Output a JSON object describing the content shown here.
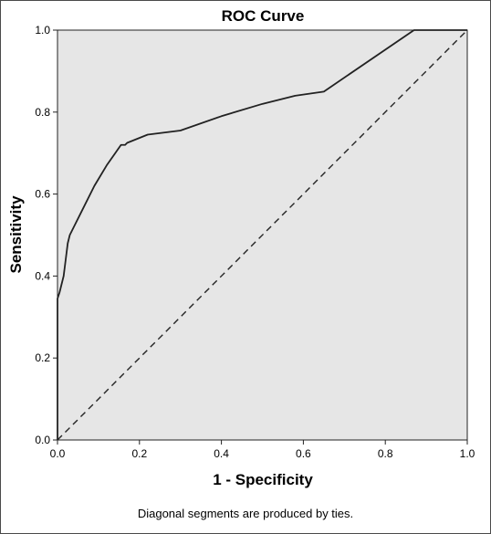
{
  "chart_data": {
    "type": "line",
    "title": "ROC Curve",
    "xlabel": "1 - Specificity",
    "ylabel": "Sensitivity",
    "xlim": [
      0,
      1
    ],
    "ylim": [
      0,
      1
    ],
    "x_ticks": [
      "0.0",
      "0.2",
      "0.4",
      "0.6",
      "0.8",
      "1.0"
    ],
    "y_ticks": [
      "0.0",
      "0.2",
      "0.4",
      "0.6",
      "0.8",
      "1.0"
    ],
    "grid": false,
    "plot_background": "#e6e6e6",
    "series": [
      {
        "style": "solid",
        "color": "#222222",
        "x": [
          0.0,
          0.0,
          0.0,
          0.005,
          0.01,
          0.015,
          0.02,
          0.025,
          0.03,
          0.04,
          0.06,
          0.09,
          0.12,
          0.155,
          0.165,
          0.17,
          0.22,
          0.3,
          0.4,
          0.5,
          0.58,
          0.65,
          0.87,
          1.0
        ],
        "y": [
          0.0,
          0.08,
          0.345,
          0.36,
          0.38,
          0.4,
          0.44,
          0.48,
          0.5,
          0.52,
          0.56,
          0.62,
          0.67,
          0.72,
          0.72,
          0.725,
          0.745,
          0.755,
          0.79,
          0.82,
          0.84,
          0.85,
          1.0,
          1.0
        ]
      },
      {
        "style": "dashed",
        "color": "#222222",
        "x": [
          0.0,
          1.0
        ],
        "y": [
          0.0,
          1.0
        ]
      }
    ],
    "footnote": "Diagonal segments are produced by ties."
  }
}
